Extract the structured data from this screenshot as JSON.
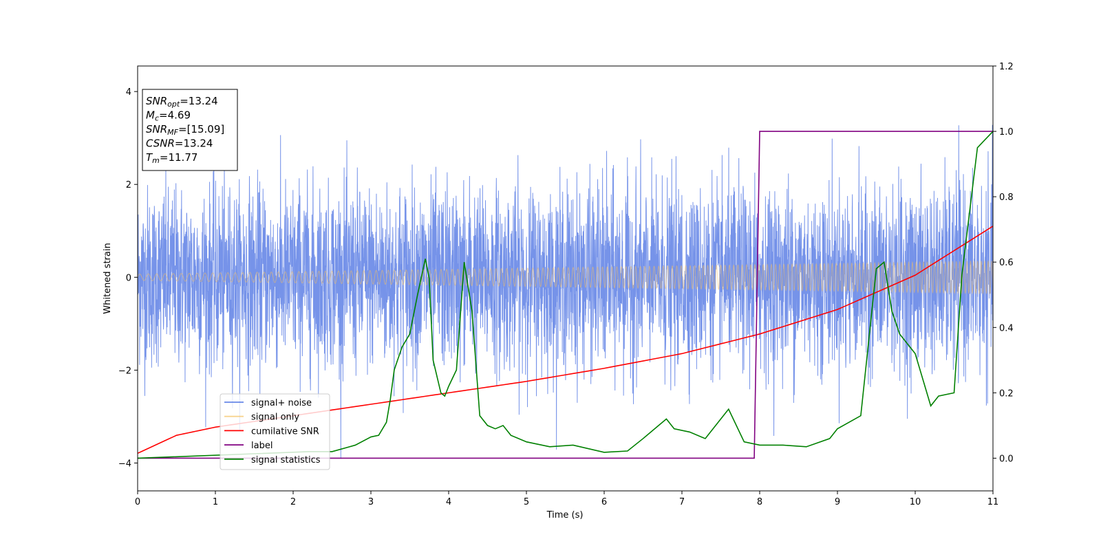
{
  "chart_data": {
    "type": "line",
    "title": "",
    "xlabel": "Time (s)",
    "ylabel": "Whitened strain",
    "xlim": [
      0,
      11
    ],
    "ylim": [
      -4.6,
      4.55
    ],
    "y2lim": [
      -0.1,
      1.2
    ],
    "xticks": [
      "0",
      "1",
      "2",
      "3",
      "4",
      "5",
      "6",
      "7",
      "8",
      "9",
      "10",
      "11"
    ],
    "yticks": [
      "-4",
      "-2",
      "0",
      "2",
      "4"
    ],
    "y2ticks": [
      "0.0",
      "0.2",
      "0.4",
      "0.6",
      "0.8",
      "1.0",
      "1.2"
    ],
    "grid": false,
    "legend_position": "lower-left",
    "annotation": [
      {
        "sym": "SNR",
        "sub": "opt",
        "rest": "=13.24"
      },
      {
        "sym": "M",
        "sub": "c",
        "rest": "=4.69"
      },
      {
        "sym": "SNR",
        "sub": "MF",
        "rest": "=[15.09]"
      },
      {
        "sym": "CSNR",
        "sub": "",
        "rest": "=13.24"
      },
      {
        "sym": "T",
        "sub": "m",
        "rest": "=11.77"
      }
    ],
    "series": [
      {
        "name": "signal+ noise",
        "color": "#4169e1",
        "axis": "left",
        "noise_std": 0.95,
        "noise_range": [
          -4.15,
          4.15
        ]
      },
      {
        "name": "signal only",
        "color": "#f5c060",
        "axis": "left",
        "amplitude": [
          [
            0,
            0.07
          ],
          [
            11,
            0.35
          ]
        ]
      },
      {
        "name": "cumilative SNR",
        "color": "#ff0000",
        "axis": "right",
        "x": [
          0,
          0.5,
          1,
          2,
          3,
          4,
          5,
          6,
          7,
          8,
          9,
          10,
          11
        ],
        "y": [
          0.015,
          0.07,
          0.095,
          0.13,
          0.165,
          0.2,
          0.235,
          0.275,
          0.32,
          0.38,
          0.455,
          0.56,
          0.71
        ]
      },
      {
        "name": "label",
        "color": "#800080",
        "axis": "right",
        "x": [
          0,
          7.93,
          8.0,
          11
        ],
        "y": [
          0.0,
          0.0,
          1.0,
          1.0
        ]
      },
      {
        "name": "signal statistics",
        "color": "#008000",
        "axis": "right",
        "x": [
          0,
          2.2,
          2.5,
          2.8,
          3.0,
          3.1,
          3.2,
          3.25,
          3.3,
          3.4,
          3.5,
          3.6,
          3.7,
          3.75,
          3.8,
          3.9,
          3.95,
          4.0,
          4.1,
          4.2,
          4.3,
          4.4,
          4.5,
          4.6,
          4.7,
          4.8,
          5.0,
          5.3,
          5.6,
          6.0,
          6.3,
          6.5,
          6.7,
          6.8,
          6.9,
          7.1,
          7.3,
          7.5,
          7.6,
          7.8,
          8.0,
          8.3,
          8.6,
          8.9,
          9.0,
          9.3,
          9.5,
          9.6,
          9.7,
          9.8,
          10.0,
          10.2,
          10.3,
          10.5,
          10.6,
          10.8,
          11.0
        ],
        "y": [
          0.0,
          0.02,
          0.02,
          0.04,
          0.065,
          0.07,
          0.11,
          0.18,
          0.27,
          0.34,
          0.38,
          0.5,
          0.61,
          0.55,
          0.3,
          0.2,
          0.19,
          0.22,
          0.27,
          0.6,
          0.45,
          0.13,
          0.1,
          0.09,
          0.1,
          0.07,
          0.05,
          0.035,
          0.04,
          0.018,
          0.022,
          0.06,
          0.1,
          0.12,
          0.09,
          0.08,
          0.06,
          0.12,
          0.15,
          0.05,
          0.04,
          0.04,
          0.035,
          0.06,
          0.09,
          0.13,
          0.58,
          0.6,
          0.45,
          0.38,
          0.32,
          0.16,
          0.19,
          0.2,
          0.56,
          0.95,
          1.0
        ]
      }
    ]
  }
}
